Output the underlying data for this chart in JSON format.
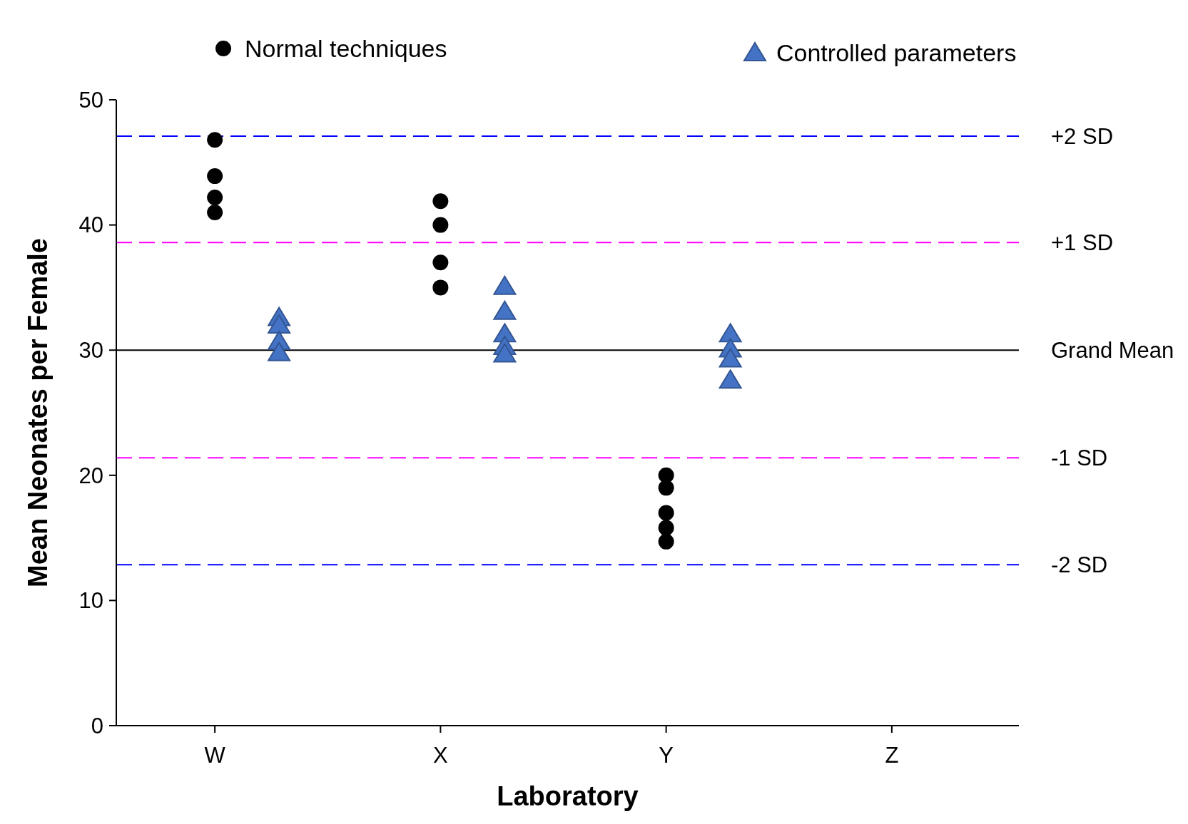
{
  "chart_data": {
    "type": "scatter",
    "xlabel": "Laboratory",
    "ylabel": "Mean Neonates per Female",
    "categories": [
      "W",
      "X",
      "Y",
      "Z"
    ],
    "ylim": [
      0,
      50
    ],
    "yticks": [
      0,
      10,
      20,
      30,
      40,
      50
    ],
    "grid": false,
    "legend": "top",
    "series": [
      {
        "name": "Normal techniques",
        "color": "#000000",
        "marker": "circle",
        "x": [
          "W",
          "W",
          "W",
          "W",
          "X",
          "X",
          "X",
          "X",
          "Y",
          "Y",
          "Y",
          "Y",
          "Y"
        ],
        "values": [
          46.8,
          43.9,
          42.2,
          41.0,
          41.9,
          40.0,
          37.0,
          35.0,
          20.0,
          19.0,
          17.0,
          15.8,
          14.7
        ]
      },
      {
        "name": "Controlled parameters",
        "color": "#4472c4",
        "marker": "triangle",
        "x": [
          "W",
          "W",
          "W",
          "W",
          "X",
          "X",
          "X",
          "X",
          "X",
          "Y",
          "Y",
          "Y",
          "Y"
        ],
        "values": [
          32.6,
          32.0,
          30.7,
          29.8,
          35.1,
          33.1,
          31.3,
          30.3,
          29.7,
          31.3,
          30.1,
          29.3,
          27.6
        ]
      }
    ],
    "ref_lines": [
      {
        "axis": "y",
        "value": 47.1,
        "label": "+2 SD",
        "color": "#0000ff",
        "line_style": "dashed"
      },
      {
        "axis": "y",
        "value": 38.6,
        "label": "+1 SD",
        "color": "#ff00ff",
        "line_style": "dashed"
      },
      {
        "axis": "y",
        "value": 30,
        "label": "Grand Mean",
        "color": "#000000",
        "line_style": "solid"
      },
      {
        "axis": "y",
        "value": 21.4,
        "label": "-1 SD",
        "color": "#ff00ff",
        "line_style": "dashed"
      },
      {
        "axis": "y",
        "value": 12.85,
        "label": "-2 SD",
        "color": "#0000ff",
        "line_style": "dashed"
      }
    ]
  }
}
